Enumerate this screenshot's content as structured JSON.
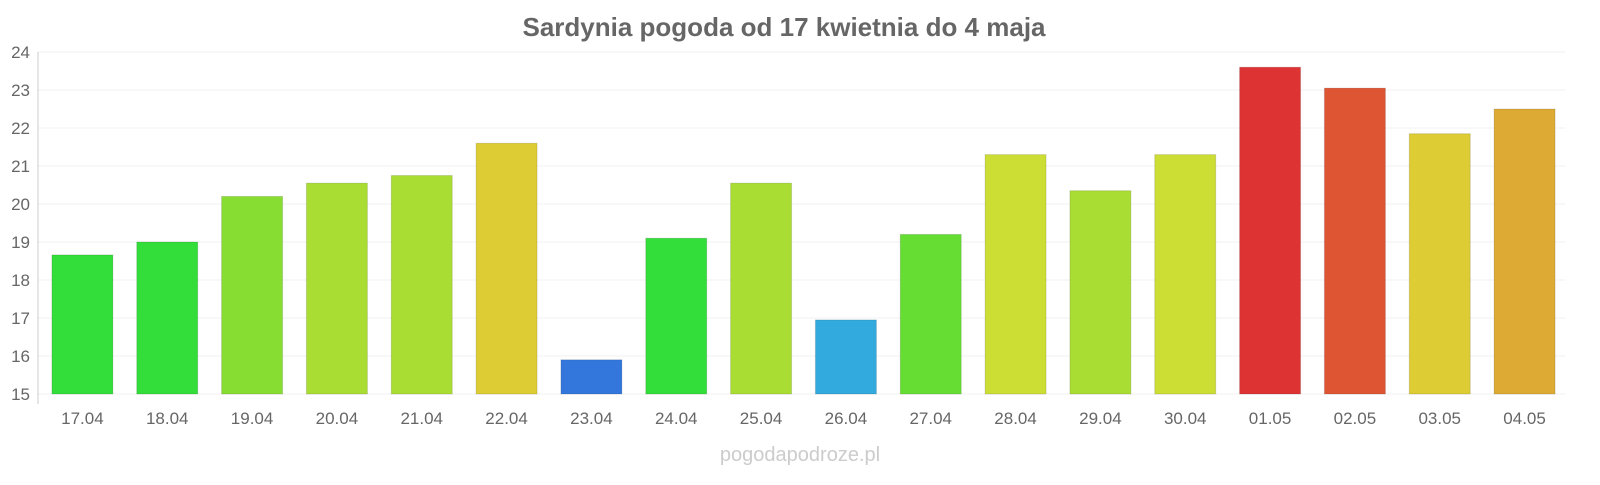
{
  "chart_data": {
    "type": "bar",
    "title": "Sardynia pogoda od 17 kwietnia do 4 maja",
    "xlabel": "",
    "ylabel": "",
    "ylim": [
      15,
      24
    ],
    "yticks": [
      15,
      16,
      17,
      18,
      19,
      20,
      21,
      22,
      23,
      24
    ],
    "grid": true,
    "categories": [
      "17.04",
      "18.04",
      "19.04",
      "20.04",
      "21.04",
      "22.04",
      "23.04",
      "24.04",
      "25.04",
      "26.04",
      "27.04",
      "28.04",
      "29.04",
      "30.04",
      "01.05",
      "02.05",
      "03.05",
      "04.05"
    ],
    "values": [
      18.66,
      19.0,
      20.2,
      20.55,
      20.75,
      21.6,
      15.9,
      19.1,
      20.55,
      16.95,
      19.2,
      21.3,
      20.35,
      21.3,
      23.6,
      23.05,
      21.85,
      22.5
    ],
    "colors": [
      "#33dd3a",
      "#33dd3a",
      "#88dd33",
      "#aadd33",
      "#aadd33",
      "#ddcc33",
      "#3377dd",
      "#33dd3a",
      "#aadd33",
      "#33aadd",
      "#66dd33",
      "#ccdd33",
      "#aadd33",
      "#ccdd33",
      "#dd3333",
      "#dd5533",
      "#ddcc33",
      "#ddaa33"
    ]
  },
  "watermark": "pogodapodroze.pl"
}
